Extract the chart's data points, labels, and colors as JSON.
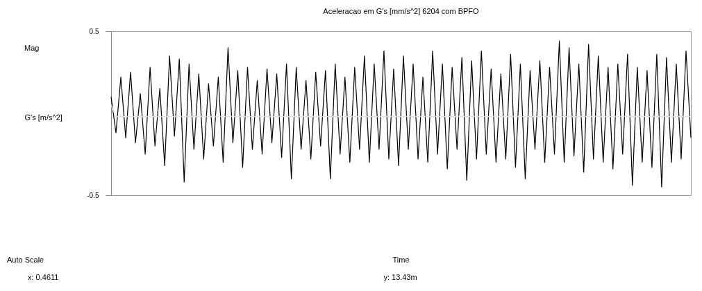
{
  "chart_data": {
    "type": "line",
    "title": "Aceleracao em G's [mm/s^2] 6204 com BPFO",
    "ylabel": "G's [m/s^2]",
    "tick_labels": "y",
    "annotations": [
      "Mag",
      "Auto Scale",
      "x: 0.4611",
      "y: 13.43m",
      "Time"
    ],
    "categories": [
      null,
      null,
      null,
      null,
      null,
      null,
      null,
      null,
      null,
      null,
      null,
      null,
      null,
      null,
      null,
      null,
      null,
      null,
      null,
      null,
      null,
      null,
      null,
      null,
      null,
      null,
      null,
      null,
      null,
      null,
      null,
      null,
      null,
      null,
      null,
      null,
      null,
      null,
      null,
      null,
      null,
      null,
      null,
      null,
      null,
      null,
      null,
      null,
      null,
      null,
      null,
      null,
      null,
      null,
      null,
      null,
      null,
      null,
      null,
      null,
      null,
      null,
      null,
      null,
      null,
      null,
      null,
      null,
      null,
      null,
      null,
      null,
      null,
      null,
      null,
      null,
      null,
      null,
      null,
      null,
      null,
      null,
      null,
      null,
      null,
      null,
      null,
      null,
      null,
      null,
      null,
      null,
      null,
      null,
      null,
      null,
      null,
      null,
      null,
      null,
      null,
      null,
      null,
      null,
      null,
      null,
      null,
      null,
      null,
      null,
      null,
      null,
      null,
      null,
      null,
      null,
      null,
      null,
      null,
      null
    ],
    "series": [
      {
        "color": "#000000",
        "values": [
          0.1,
          -0.12,
          0.22,
          -0.15,
          0.25,
          -0.18,
          0.12,
          -0.25,
          0.28,
          -0.2,
          0.15,
          -0.32,
          0.35,
          -0.14,
          0.33,
          -0.42,
          0.3,
          -0.22,
          0.24,
          -0.28,
          0.18,
          -0.2,
          0.22,
          -0.3,
          0.4,
          -0.18,
          0.26,
          -0.33,
          0.28,
          -0.22,
          0.2,
          -0.25,
          0.27,
          -0.18,
          0.24,
          -0.27,
          0.3,
          -0.4,
          0.28,
          -0.22,
          0.2,
          -0.28,
          0.25,
          -0.2,
          0.26,
          -0.4,
          0.3,
          -0.25,
          0.22,
          -0.3,
          0.28,
          -0.22,
          0.35,
          -0.3,
          0.3,
          -0.22,
          0.38,
          -0.28,
          0.27,
          -0.32,
          0.35,
          -0.22,
          0.3,
          -0.28,
          0.22,
          -0.3,
          0.38,
          -0.25,
          0.3,
          -0.34,
          0.28,
          -0.22,
          0.34,
          -0.41,
          0.32,
          -0.28,
          0.38,
          -0.25,
          0.27,
          -0.3,
          0.24,
          -0.28,
          0.36,
          -0.33,
          0.3,
          -0.4,
          0.26,
          -0.22,
          0.32,
          -0.3,
          0.28,
          -0.25,
          0.44,
          -0.3,
          0.4,
          -0.26,
          0.3,
          -0.36,
          0.42,
          -0.28,
          0.35,
          -0.3,
          0.28,
          -0.34,
          0.3,
          -0.25,
          0.36,
          -0.44,
          0.28,
          -0.3,
          0.26,
          -0.33,
          0.36,
          -0.45,
          0.34,
          -0.3,
          0.3,
          -0.28,
          0.38,
          -0.15
        ]
      },
      {
        "color": "#e0e0e0",
        "values": [
          0.05,
          -0.02,
          -0.02,
          -0.02,
          -0.02,
          -0.02,
          -0.02,
          -0.02,
          -0.02,
          -0.02,
          -0.02,
          -0.02,
          -0.02,
          -0.02,
          -0.02,
          -0.02,
          -0.02,
          -0.02,
          -0.02,
          -0.02,
          -0.02,
          -0.02,
          -0.02,
          -0.02,
          -0.02,
          -0.02,
          -0.02,
          -0.02,
          -0.02,
          -0.02,
          -0.02,
          -0.02,
          -0.02,
          -0.02,
          -0.02,
          -0.02,
          -0.02,
          -0.02,
          -0.02,
          -0.02,
          -0.02,
          -0.02,
          -0.02,
          -0.02,
          -0.02,
          -0.02,
          -0.02,
          -0.02,
          -0.02,
          -0.02,
          -0.02,
          -0.02,
          -0.02,
          -0.02,
          -0.02,
          -0.02,
          -0.02,
          -0.02,
          -0.02,
          -0.02,
          -0.02,
          -0.02,
          -0.02,
          -0.02,
          -0.02,
          -0.02,
          -0.02,
          -0.02,
          -0.02,
          -0.02,
          -0.02,
          -0.02,
          -0.02,
          -0.02,
          -0.02,
          -0.02,
          -0.02,
          -0.02,
          -0.02,
          -0.02,
          -0.02,
          -0.02,
          -0.02,
          -0.02,
          -0.02,
          -0.02,
          -0.02,
          -0.02,
          -0.02,
          -0.02,
          -0.02,
          -0.02,
          -0.02,
          -0.02,
          -0.02,
          -0.02,
          -0.02,
          -0.02,
          -0.02,
          -0.02,
          -0.02,
          -0.02,
          -0.02,
          -0.02,
          -0.02,
          -0.02,
          -0.02,
          -0.02,
          -0.02,
          -0.02,
          -0.02,
          -0.02,
          -0.02,
          -0.02,
          -0.02,
          -0.02,
          -0.02,
          -0.02,
          -0.02,
          -0.02
        ]
      }
    ],
    "ylim": [
      -0.5,
      0.5
    ],
    "yticks": [
      -0.5,
      0.5
    ],
    "grid": false,
    "marker": "none",
    "line_style": "solid"
  }
}
